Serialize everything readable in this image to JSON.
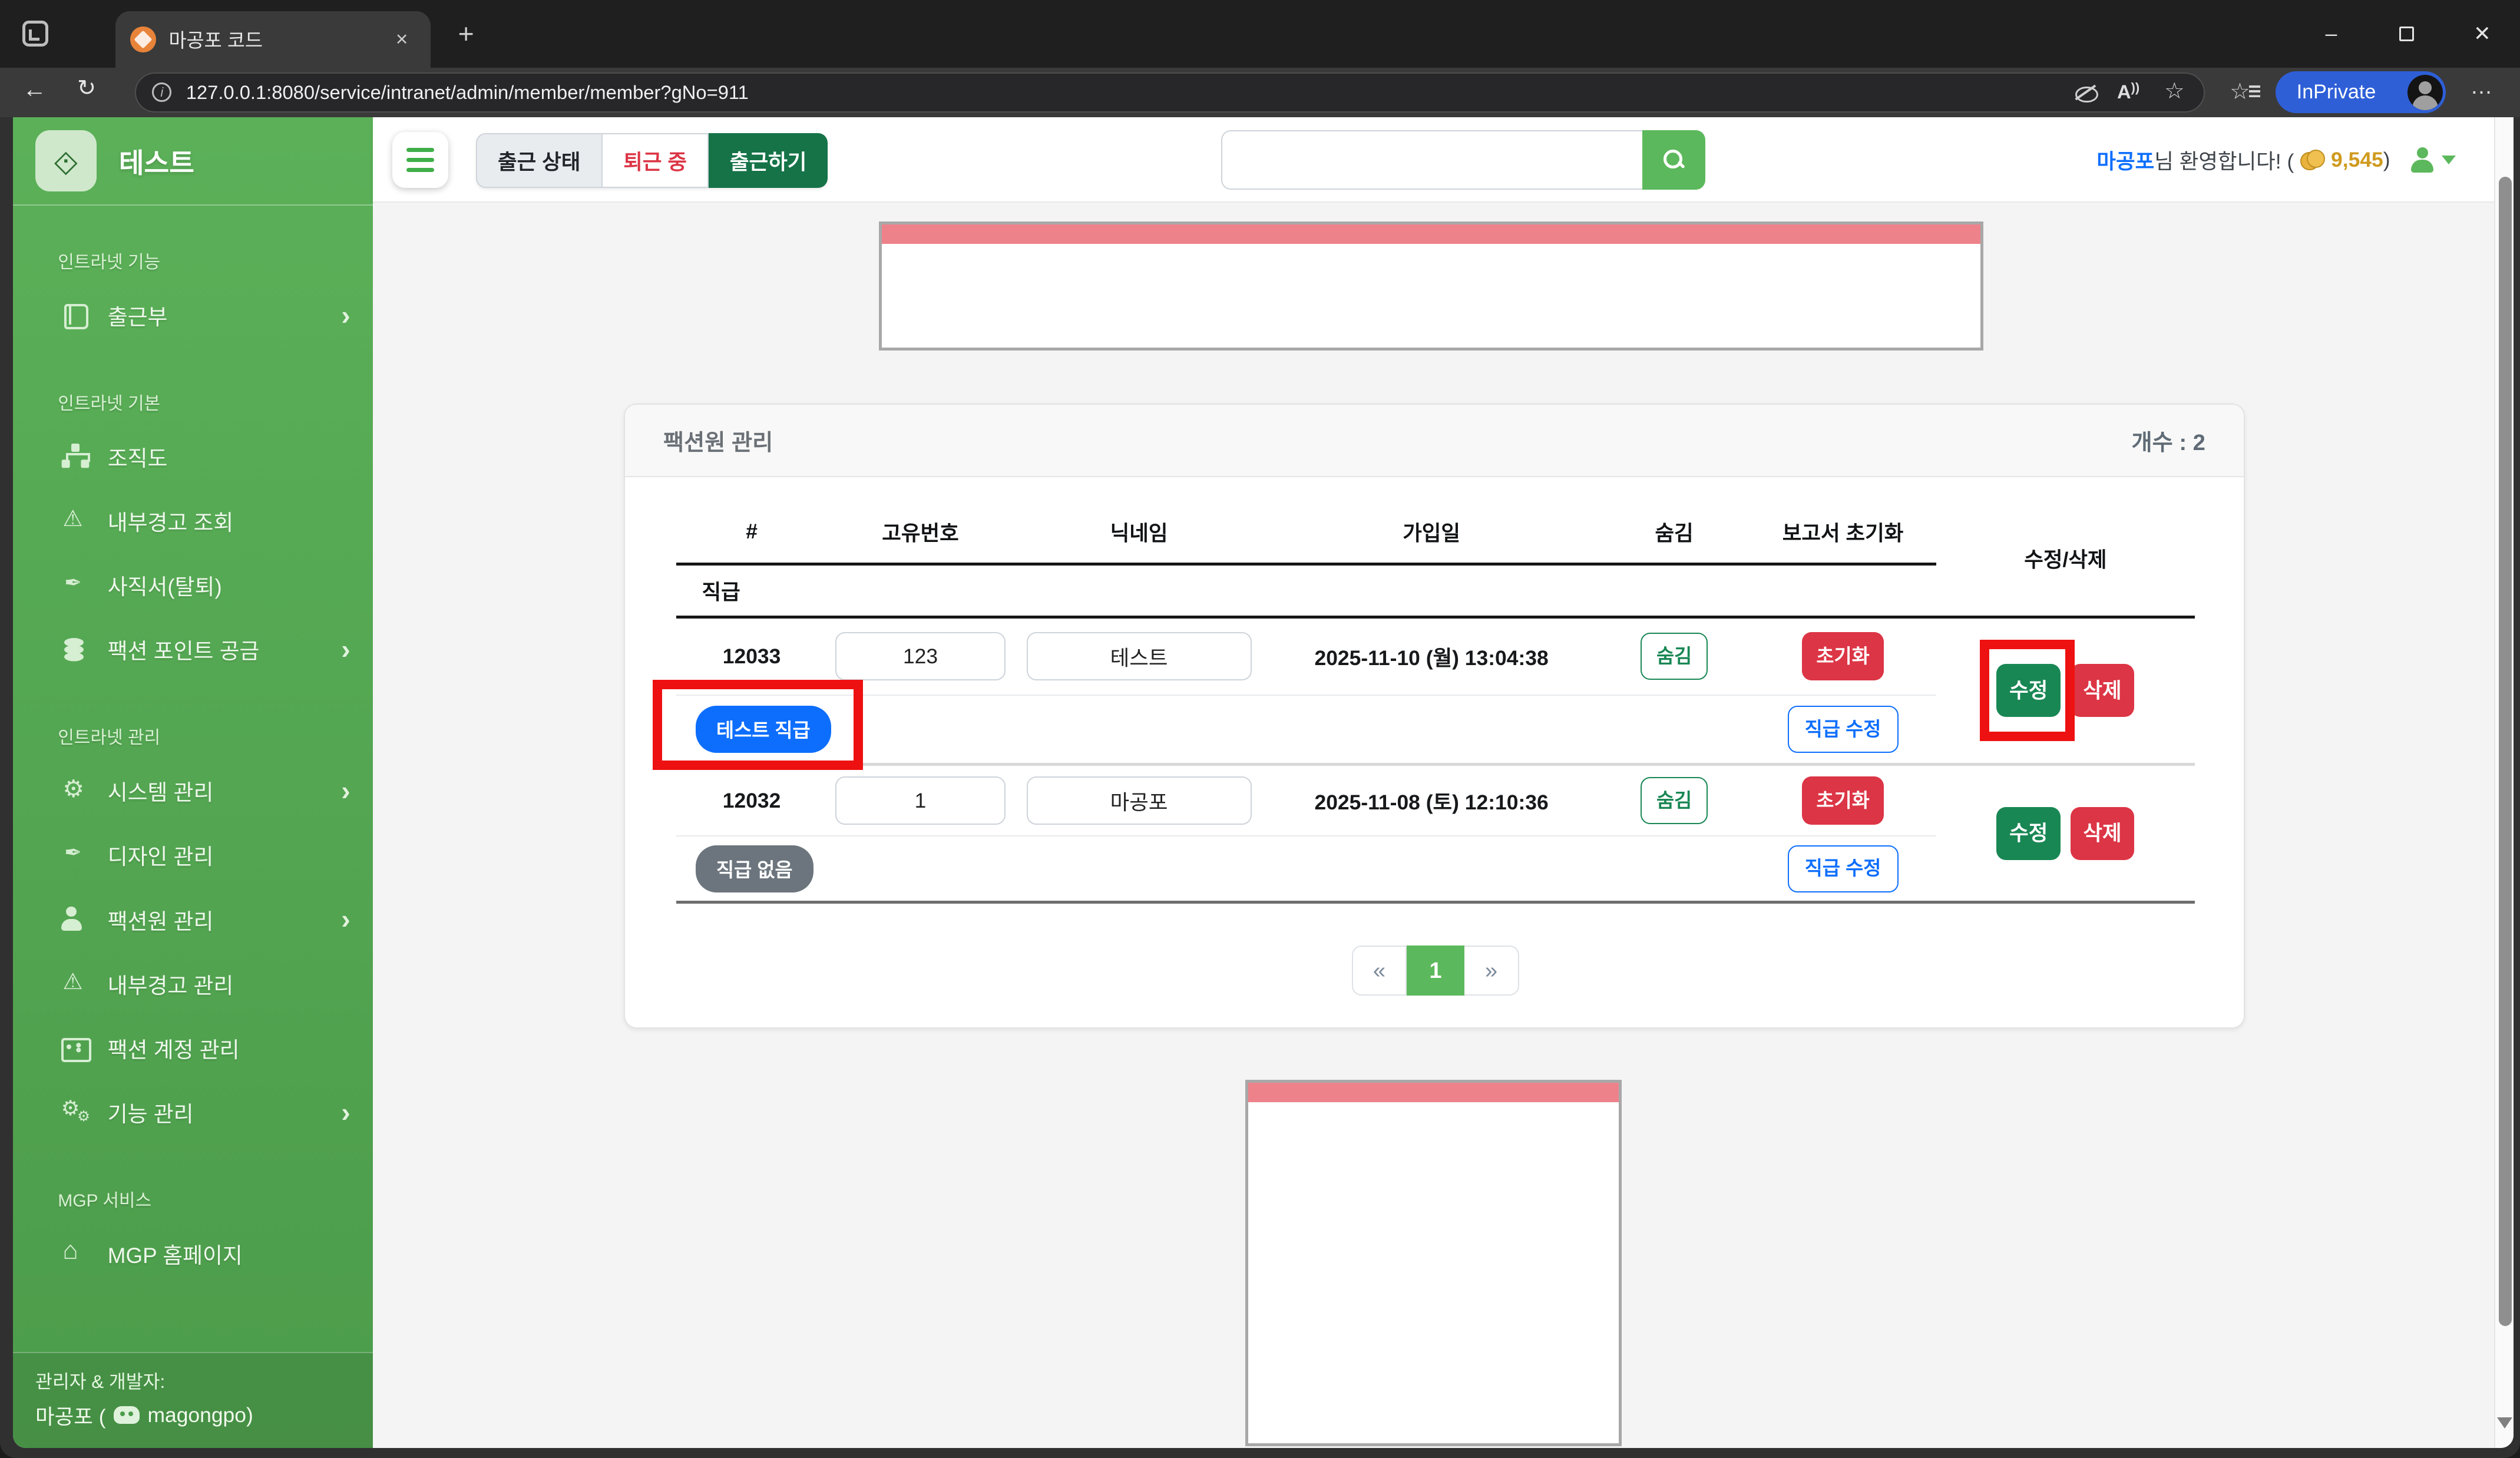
{
  "browser": {
    "tab_title": "마공포 코드",
    "url": "127.0.0.1:8080/service/intranet/admin/member/member?gNo=911",
    "inprivate_label": "InPrivate"
  },
  "sidebar": {
    "brand": "테스트",
    "sections": [
      {
        "label": "인트라넷 기능",
        "items": [
          {
            "name": "attendance-book",
            "icon": "book-icon",
            "label": "출근부",
            "chevron": true
          }
        ]
      },
      {
        "label": "인트라넷 기본",
        "items": [
          {
            "name": "org-chart",
            "icon": "orgchart-icon",
            "label": "조직도"
          },
          {
            "name": "internal-warning-view",
            "icon": "warning-icon",
            "label": "내부경고 조회"
          },
          {
            "name": "resignation",
            "icon": "pen-icon",
            "label": "사직서(탈퇴)"
          },
          {
            "name": "faction-point-fund",
            "icon": "coins-icon",
            "label": "팩션 포인트 공금",
            "chevron": true
          }
        ]
      },
      {
        "label": "인트라넷 관리",
        "items": [
          {
            "name": "system-management",
            "icon": "gear-icon",
            "label": "시스템 관리",
            "chevron": true
          },
          {
            "name": "design-management",
            "icon": "pen-icon",
            "label": "디자인 관리"
          },
          {
            "name": "faction-member-management",
            "icon": "member-icon",
            "label": "팩션원 관리",
            "chevron": true
          },
          {
            "name": "internal-warning-management",
            "icon": "warning-icon",
            "label": "내부경고 관리"
          },
          {
            "name": "faction-account-management",
            "icon": "idcard-icon",
            "label": "팩션 계정 관리"
          },
          {
            "name": "feature-management",
            "icon": "gears-icon",
            "label": "기능 관리",
            "chevron": true
          }
        ]
      },
      {
        "label": "MGP 서비스",
        "items": [
          {
            "name": "mgp-homepage",
            "icon": "home-icon",
            "label": "MGP 홈페이지"
          }
        ]
      }
    ],
    "footer": {
      "line1": "관리자 & 개발자:",
      "owner_prefix": "마공포 (",
      "discord_name": "magongpo",
      "close_paren": ")"
    }
  },
  "navbar": {
    "status_label": "출근 상태",
    "status_value": "퇴근 중",
    "checkin_label": "출근하기",
    "greeting": {
      "name": "마공포",
      "message": "님 환영합니다! (",
      "points": "9,545",
      "close": ")"
    }
  },
  "page": {
    "card": {
      "title": "팩션원 관리",
      "count": "개수 : 2",
      "columns": [
        "#",
        "고유번호",
        "닉네임",
        "가입일",
        "숨김",
        "보고서 초기화",
        "수정/삭제"
      ],
      "rank_header": "직급",
      "rows": [
        {
          "id": "12033",
          "unique_no": "123",
          "nickname": "테스트",
          "joined": "2025-11-10 (월) 13:04:38",
          "rank_badge": "테스트 직급"
        },
        {
          "id": "12032",
          "unique_no": "1",
          "nickname": "마공포",
          "joined": "2025-11-08 (토) 12:10:36",
          "rank_badge": "직급 없음"
        }
      ],
      "buttons": {
        "hide": "숨김",
        "reset": "초기화",
        "rank_edit": "직급 수정",
        "edit": "수정",
        "delete": "삭제"
      },
      "pagination": {
        "prev": "«",
        "current": "1",
        "next": "»"
      }
    }
  },
  "colors": {
    "accent_green": "#5cb85c",
    "dark_green": "#198754",
    "red": "#dc3545",
    "blue": "#0d6efd",
    "gray": "#6c757d",
    "pink": "#ee828b"
  }
}
